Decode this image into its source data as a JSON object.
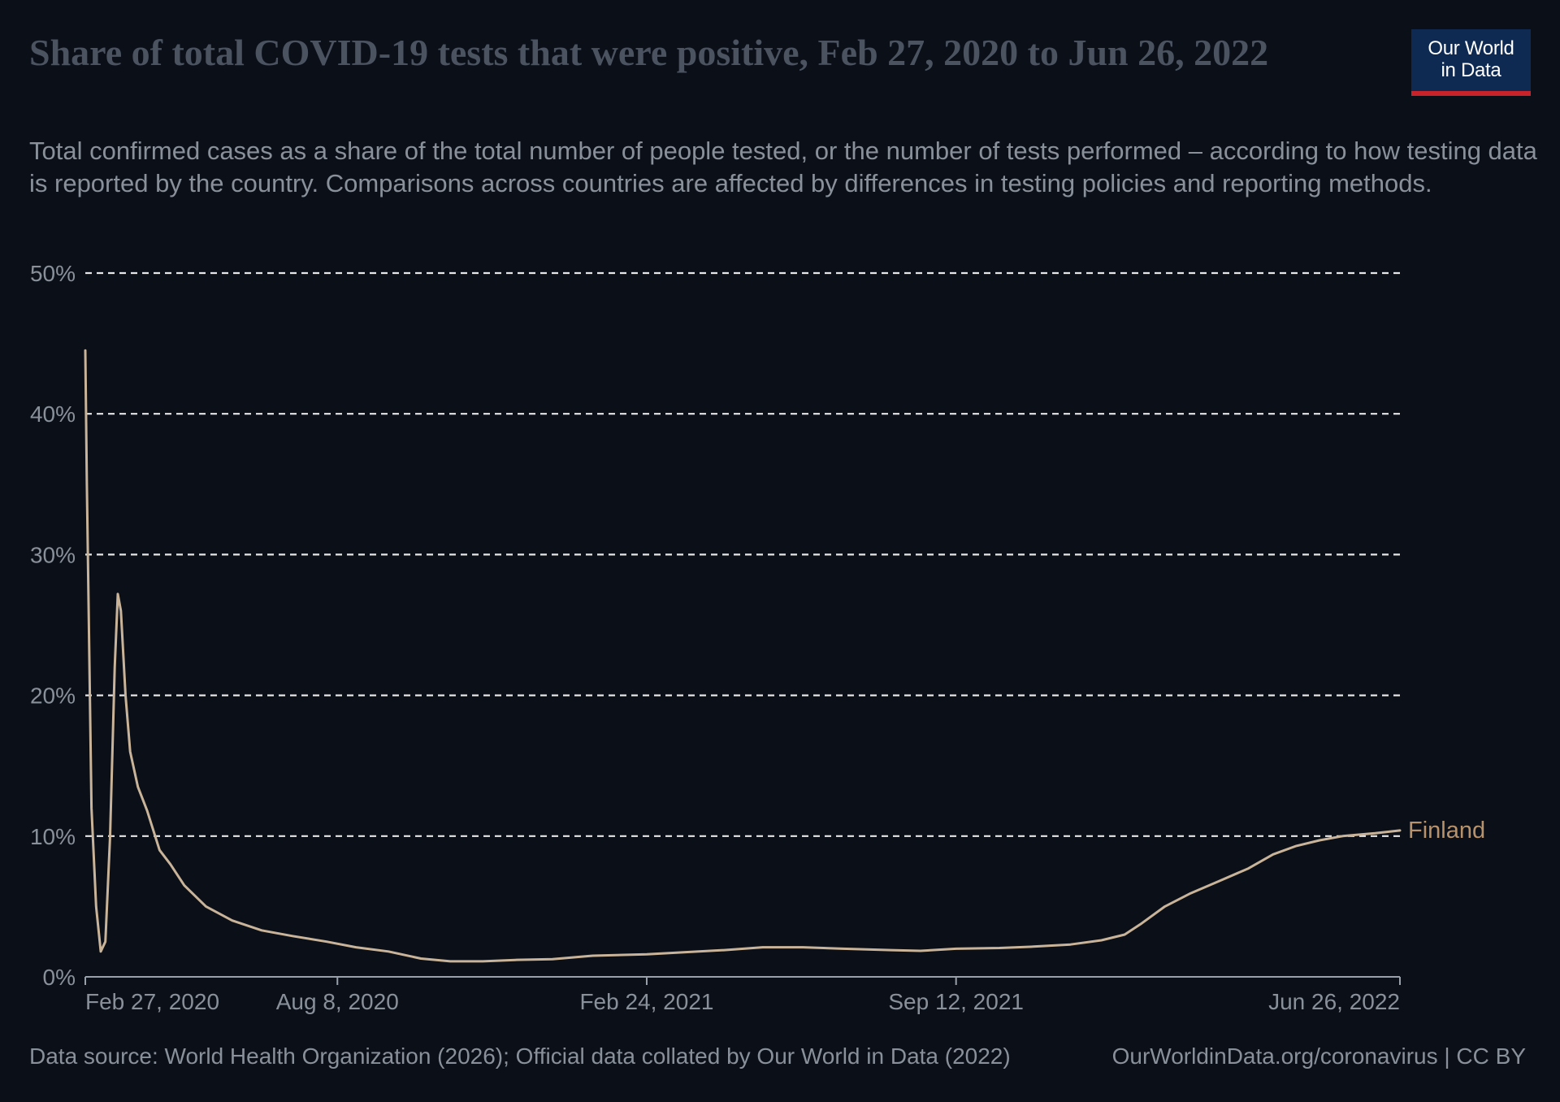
{
  "header": {
    "title": "Share of total COVID-19 tests that were positive, Feb 27, 2020 to Jun 26, 2022",
    "subtitle": "Total confirmed cases as a share of the total number of people tested, or the number of tests performed – according to how testing data is reported by the country. Comparisons across countries are affected by differences in testing policies and reporting methods.",
    "logo_line1": "Our World",
    "logo_line2": "in Data"
  },
  "colors": {
    "background": "#0a0f18",
    "series": "#c9b49a",
    "series_label": "#b8926a",
    "grid": "#e6e6e6",
    "axis_text": "#8a909a",
    "logo_bg": "#0e2a52",
    "logo_accent": "#c8222a"
  },
  "footer": {
    "source": "Data source: World Health Organization (2026); Official data collated by Our World in Data (2022)",
    "link": "OurWorldinData.org/coronavirus | CC BY"
  },
  "chart_data": {
    "type": "line",
    "title": "Share of total COVID-19 tests that were positive, Feb 27, 2020 to Jun 26, 2022",
    "xlabel": "",
    "ylabel": "",
    "x_type": "date",
    "xlim": [
      "2020-02-27",
      "2022-06-26"
    ],
    "ylim": [
      0,
      50
    ],
    "y_unit": "%",
    "y_ticks": [
      0,
      10,
      20,
      30,
      40,
      50
    ],
    "y_tick_labels": [
      "0%",
      "10%",
      "20%",
      "30%",
      "40%",
      "50%"
    ],
    "x_ticks": [
      "2020-02-27",
      "2020-08-08",
      "2021-02-24",
      "2021-09-12",
      "2022-06-26"
    ],
    "x_tick_labels": [
      "Feb 27, 2020",
      "Aug 8, 2020",
      "Feb 24, 2021",
      "Sep 12, 2021",
      "Jun 26, 2022"
    ],
    "grid": "horizontal dashed",
    "legend": "inline label at line end",
    "series": [
      {
        "name": "Finland",
        "points": [
          [
            "2020-02-27",
            44.5
          ],
          [
            "2020-02-28",
            35.0
          ],
          [
            "2020-03-02",
            12.0
          ],
          [
            "2020-03-05",
            5.0
          ],
          [
            "2020-03-08",
            1.8
          ],
          [
            "2020-03-11",
            2.5
          ],
          [
            "2020-03-14",
            10.0
          ],
          [
            "2020-03-17",
            22.0
          ],
          [
            "2020-03-19",
            27.2
          ],
          [
            "2020-03-21",
            26.0
          ],
          [
            "2020-03-24",
            20.0
          ],
          [
            "2020-03-27",
            16.0
          ],
          [
            "2020-04-01",
            13.5
          ],
          [
            "2020-04-07",
            11.8
          ],
          [
            "2020-04-15",
            9.0
          ],
          [
            "2020-04-22",
            8.0
          ],
          [
            "2020-05-01",
            6.5
          ],
          [
            "2020-05-15",
            5.0
          ],
          [
            "2020-06-01",
            4.0
          ],
          [
            "2020-06-20",
            3.3
          ],
          [
            "2020-07-10",
            2.9
          ],
          [
            "2020-08-01",
            2.5
          ],
          [
            "2020-08-20",
            2.1
          ],
          [
            "2020-09-10",
            1.8
          ],
          [
            "2020-10-01",
            1.3
          ],
          [
            "2020-10-20",
            1.1
          ],
          [
            "2020-11-10",
            1.1
          ],
          [
            "2020-12-01",
            1.2
          ],
          [
            "2020-12-25",
            1.25
          ],
          [
            "2021-01-20",
            1.5
          ],
          [
            "2021-02-24",
            1.6
          ],
          [
            "2021-03-20",
            1.75
          ],
          [
            "2021-04-15",
            1.9
          ],
          [
            "2021-05-10",
            2.1
          ],
          [
            "2021-06-05",
            2.1
          ],
          [
            "2021-07-01",
            2.0
          ],
          [
            "2021-08-01",
            1.9
          ],
          [
            "2021-08-20",
            1.85
          ],
          [
            "2021-09-12",
            2.0
          ],
          [
            "2021-10-10",
            2.05
          ],
          [
            "2021-11-01",
            2.15
          ],
          [
            "2021-11-25",
            2.3
          ],
          [
            "2021-12-15",
            2.6
          ],
          [
            "2021-12-30",
            3.0
          ],
          [
            "2022-01-10",
            3.8
          ],
          [
            "2022-01-25",
            5.0
          ],
          [
            "2022-02-10",
            5.9
          ],
          [
            "2022-03-01",
            6.8
          ],
          [
            "2022-03-20",
            7.7
          ],
          [
            "2022-04-05",
            8.7
          ],
          [
            "2022-04-20",
            9.3
          ],
          [
            "2022-05-05",
            9.7
          ],
          [
            "2022-05-20",
            10.0
          ],
          [
            "2022-06-10",
            10.2
          ],
          [
            "2022-06-26",
            10.4
          ]
        ]
      }
    ]
  }
}
